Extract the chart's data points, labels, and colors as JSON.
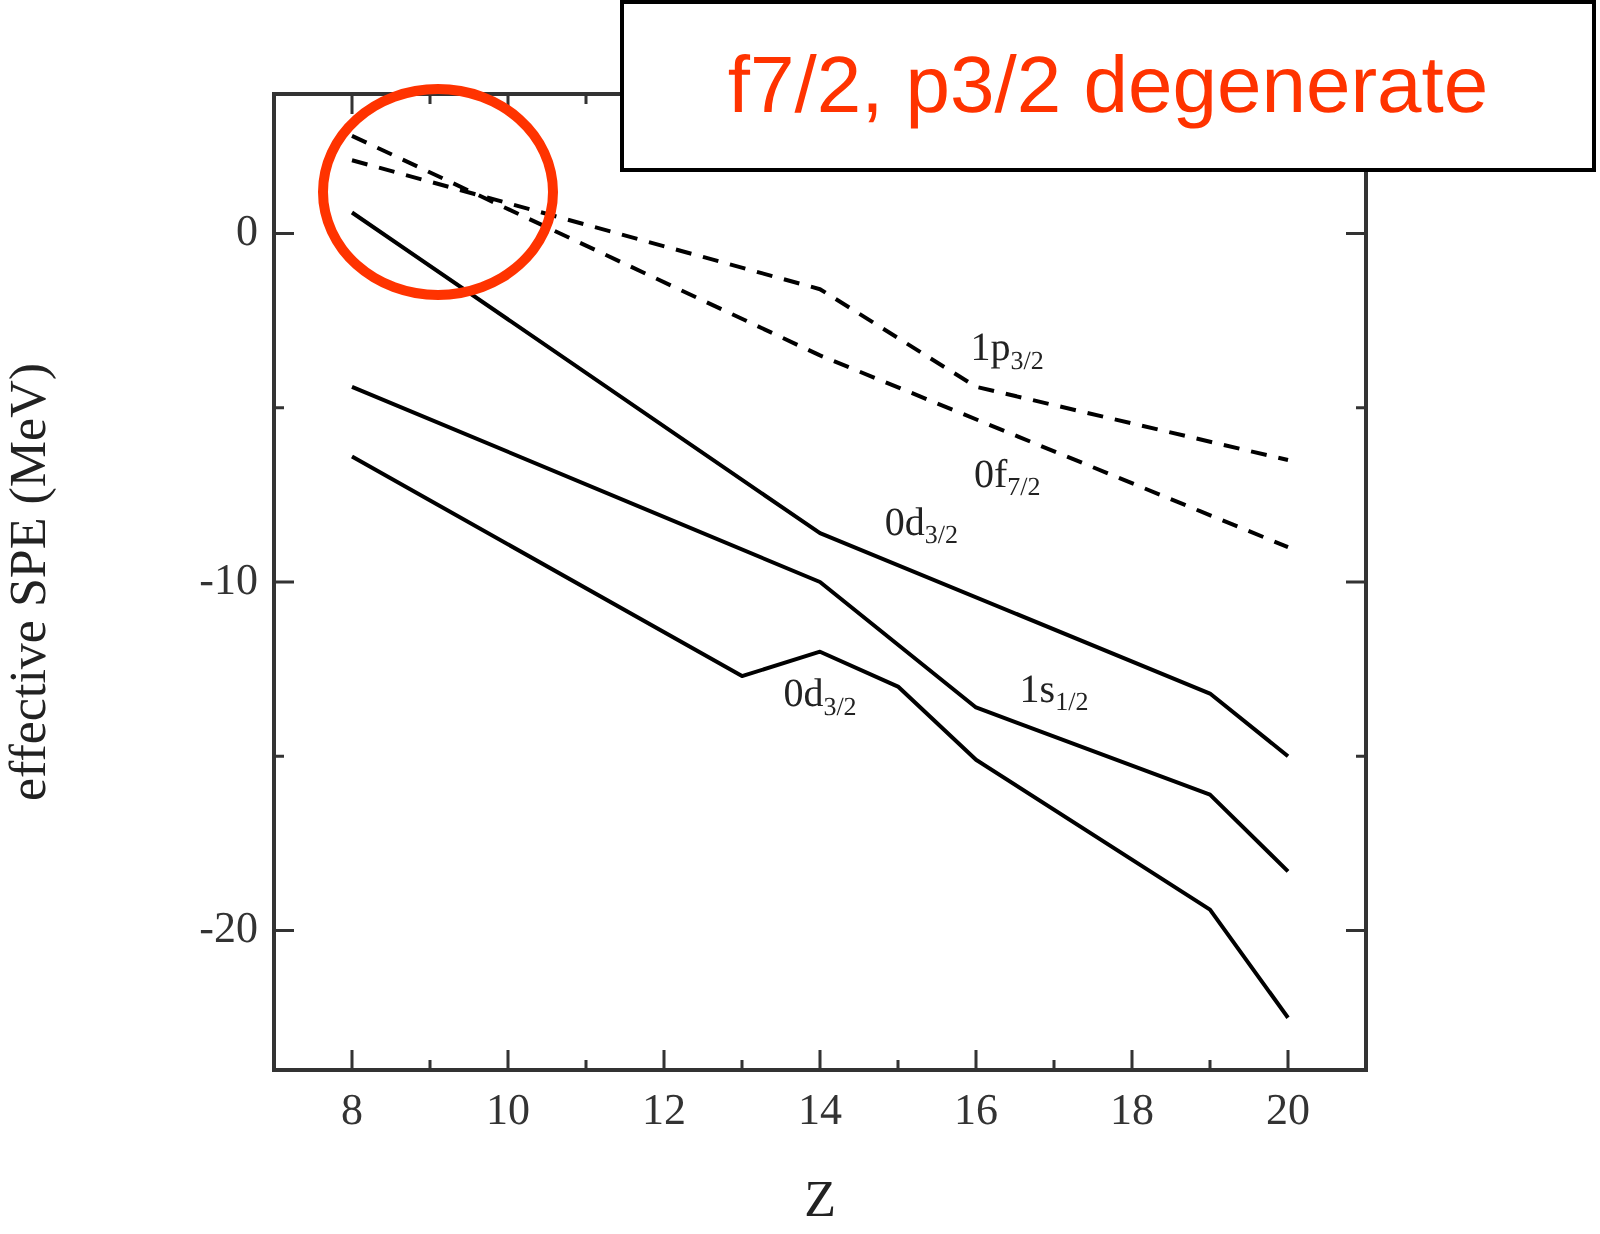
{
  "chart_data": {
    "type": "line",
    "xlabel": "Z",
    "ylabel": "effective SPE (MeV)",
    "xlim": [
      7,
      21
    ],
    "ylim": [
      -24,
      4
    ],
    "xticks": [
      8,
      {
        "value": 9,
        "label": null
      },
      10,
      {
        "value": 11,
        "label": null
      },
      12,
      {
        "value": 13,
        "label": null
      },
      14,
      {
        "value": 15,
        "label": null
      },
      16,
      {
        "value": 17,
        "label": null
      },
      18,
      {
        "value": 19,
        "label": null
      },
      20
    ],
    "yticks": [
      -20,
      {
        "value": -15,
        "label": null
      },
      -10,
      {
        "value": -5,
        "label": null
      },
      0
    ],
    "grid": false,
    "legend": false,
    "marker": "none",
    "series": [
      {
        "color": "#000000",
        "line_style": "dashed",
        "x": [
          8,
          14,
          16,
          20
        ],
        "values": [
          2.1,
          -1.6,
          -4.4,
          -6.5
        ]
      },
      {
        "color": "#000000",
        "line_style": "dashed",
        "x": [
          8,
          14,
          20
        ],
        "values": [
          2.8,
          -3.5,
          -9.0
        ]
      },
      {
        "color": "#000000",
        "line_style": "solid",
        "x": [
          8,
          14,
          19,
          20
        ],
        "values": [
          0.6,
          -8.6,
          -13.2,
          -15.0
        ]
      },
      {
        "color": "#000000",
        "line_style": "solid",
        "x": [
          8,
          14,
          16,
          19,
          20
        ],
        "values": [
          -4.4,
          -10.0,
          -13.6,
          -16.1,
          -18.3
        ]
      },
      {
        "color": "#000000",
        "line_style": "solid",
        "x": [
          8,
          13,
          14,
          15,
          16,
          19,
          20
        ],
        "values": [
          -6.4,
          -12.7,
          -12.0,
          -13.0,
          -15.1,
          -19.4,
          -22.5
        ]
      }
    ],
    "annotations": [
      "f7/2, p3/2 degenerate",
      {
        "text": "1p$_{3/2}$",
        "x": 16.4,
        "y": -4.6
      },
      {
        "text": "0f$_{7/2}$",
        "x": 16.4,
        "y": -5.7
      },
      {
        "text": "0d$_{3/2}$",
        "x": 15.3,
        "y": -9.6
      },
      {
        "text": "1s$_{1/2}$",
        "x": 17.0,
        "y": -14.4
      },
      {
        "text": "0d$_{3/2}$",
        "x": 14.0,
        "y": -12.0
      }
    ]
  }
}
